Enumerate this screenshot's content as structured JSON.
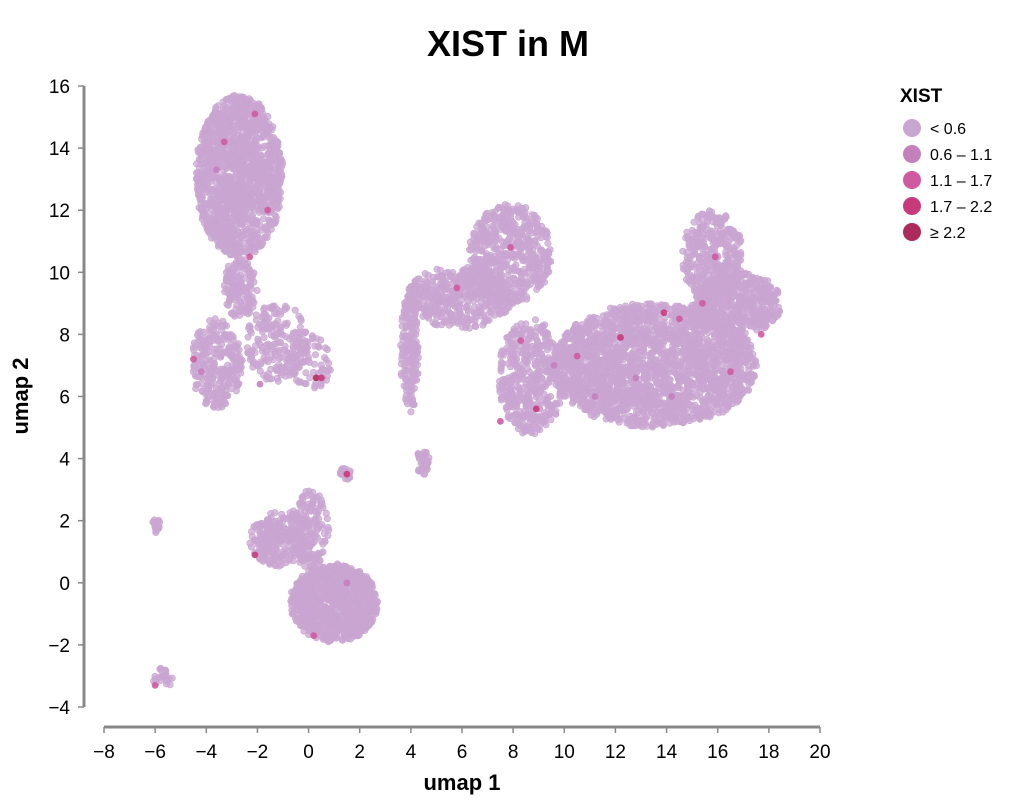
{
  "chart_data": {
    "type": "scatter",
    "title": "XIST in M",
    "xlabel": "umap 1",
    "ylabel": "umap 2",
    "xlim": [
      -8,
      20
    ],
    "ylim": [
      -4,
      16
    ],
    "xticks": [
      -8,
      -6,
      -4,
      -2,
      0,
      2,
      4,
      6,
      8,
      10,
      12,
      14,
      16,
      18,
      20
    ],
    "yticks": [
      -4,
      -2,
      0,
      2,
      4,
      6,
      8,
      10,
      12,
      14,
      16
    ],
    "xtick_labels": [
      "−8",
      "−6",
      "−4",
      "−2",
      "0",
      "2",
      "4",
      "6",
      "8",
      "10",
      "12",
      "14",
      "16",
      "18",
      "20"
    ],
    "ytick_labels": [
      "−4",
      "−2",
      "0",
      "2",
      "4",
      "6",
      "8",
      "10",
      "12",
      "14",
      "16"
    ],
    "grid": false,
    "legend": {
      "title": "XIST",
      "placement": "right",
      "items": [
        {
          "label": "< 0.6",
          "color": "#c9a5d1"
        },
        {
          "label": "0.6 – 1.1",
          "color": "#c480bc"
        },
        {
          "label": "1.1 – 1.7",
          "color": "#d05aa2"
        },
        {
          "label": "1.7 – 2.2",
          "color": "#c93a7c"
        },
        {
          "label": "≥ 2.2",
          "color": "#ad2a5c"
        }
      ]
    },
    "clusters": [
      {
        "name": "upper-left-head",
        "x": [
          -4.4,
          -1.0
        ],
        "y": [
          10.5,
          15.7
        ],
        "density": 1400
      },
      {
        "name": "upper-left-neck",
        "x": [
          -3.3,
          -2.0
        ],
        "y": [
          8.5,
          10.5
        ],
        "density": 150
      },
      {
        "name": "left-arm",
        "x": [
          -4.6,
          -2.6
        ],
        "y": [
          5.6,
          8.5
        ],
        "density": 260
      },
      {
        "name": "right-arm",
        "x": [
          -2.5,
          0.0
        ],
        "y": [
          6.5,
          9.0
        ],
        "density": 200
      },
      {
        "name": "small-center-left",
        "x": [
          -0.7,
          0.9
        ],
        "y": [
          6.2,
          8.0
        ],
        "density": 70
      },
      {
        "name": "narrow-spike",
        "x": [
          3.6,
          4.3
        ],
        "y": [
          5.5,
          9.5
        ],
        "density": 160
      },
      {
        "name": "center-bridge",
        "x": [
          3.8,
          8.0
        ],
        "y": [
          8.2,
          10.2
        ],
        "density": 450
      },
      {
        "name": "center-top-hump",
        "x": [
          6.3,
          9.5
        ],
        "y": [
          9.0,
          12.2
        ],
        "density": 500
      },
      {
        "name": "center-lower-arc",
        "x": [
          7.4,
          10.0
        ],
        "y": [
          4.8,
          8.5
        ],
        "density": 450
      },
      {
        "name": "large-right-body",
        "x": [
          9.5,
          17.5
        ],
        "y": [
          5.0,
          9.0
        ],
        "density": 2200
      },
      {
        "name": "right-top-lobe",
        "x": [
          14.6,
          17.0
        ],
        "y": [
          9.0,
          12.0
        ],
        "density": 350
      },
      {
        "name": "right-tail",
        "x": [
          15.0,
          18.5
        ],
        "y": [
          8.0,
          10.0
        ],
        "density": 500
      },
      {
        "name": "lower-left-a",
        "x": [
          -2.3,
          0.2
        ],
        "y": [
          0.5,
          2.3
        ],
        "density": 260
      },
      {
        "name": "lower-left-b",
        "x": [
          -0.7,
          0.8
        ],
        "y": [
          0.5,
          3.0
        ],
        "density": 150
      },
      {
        "name": "lower-main",
        "x": [
          -0.7,
          2.7
        ],
        "y": [
          -1.9,
          0.6
        ],
        "density": 900
      },
      {
        "name": "small-island-a",
        "x": [
          4.2,
          4.7
        ],
        "y": [
          3.5,
          4.3
        ],
        "density": 40
      },
      {
        "name": "small-island-b",
        "x": [
          1.2,
          1.7
        ],
        "y": [
          3.3,
          3.7
        ],
        "density": 20
      },
      {
        "name": "small-island-c",
        "x": [
          -6.1,
          -5.8
        ],
        "y": [
          1.6,
          2.1
        ],
        "density": 20
      },
      {
        "name": "small-island-d",
        "x": [
          -6.1,
          -5.3
        ],
        "y": [
          -3.4,
          -2.7
        ],
        "density": 25
      }
    ],
    "highlighted_points": [
      {
        "x": -2.1,
        "y": 15.1,
        "level": 2
      },
      {
        "x": -3.3,
        "y": 14.2,
        "level": 2
      },
      {
        "x": -1.6,
        "y": 12.0,
        "level": 2
      },
      {
        "x": -2.3,
        "y": 10.5,
        "level": 2
      },
      {
        "x": -3.6,
        "y": 13.3,
        "level": 1
      },
      {
        "x": -4.5,
        "y": 7.2,
        "level": 2
      },
      {
        "x": -4.2,
        "y": 6.8,
        "level": 1
      },
      {
        "x": 0.3,
        "y": 6.6,
        "level": 4
      },
      {
        "x": 0.5,
        "y": 6.6,
        "level": 3
      },
      {
        "x": 1.5,
        "y": 3.5,
        "level": 3
      },
      {
        "x": -2.1,
        "y": 0.9,
        "level": 3
      },
      {
        "x": 0.2,
        "y": -1.7,
        "level": 2
      },
      {
        "x": 1.5,
        "y": 0.0,
        "level": 1
      },
      {
        "x": 5.8,
        "y": 9.5,
        "level": 2
      },
      {
        "x": 7.9,
        "y": 10.8,
        "level": 2
      },
      {
        "x": 8.3,
        "y": 7.8,
        "level": 2
      },
      {
        "x": 8.9,
        "y": 5.6,
        "level": 3
      },
      {
        "x": 7.5,
        "y": 5.2,
        "level": 2
      },
      {
        "x": 10.5,
        "y": 7.3,
        "level": 2
      },
      {
        "x": 12.2,
        "y": 7.9,
        "level": 3
      },
      {
        "x": 12.8,
        "y": 6.6,
        "level": 1
      },
      {
        "x": 13.9,
        "y": 8.7,
        "level": 3
      },
      {
        "x": 14.5,
        "y": 8.5,
        "level": 2
      },
      {
        "x": 14.2,
        "y": 6.0,
        "level": 1
      },
      {
        "x": 15.4,
        "y": 9.0,
        "level": 2
      },
      {
        "x": 15.9,
        "y": 10.5,
        "level": 2
      },
      {
        "x": 16.5,
        "y": 6.8,
        "level": 2
      },
      {
        "x": 17.7,
        "y": 8.0,
        "level": 2
      },
      {
        "x": 11.2,
        "y": 6.0,
        "level": 1
      },
      {
        "x": 9.6,
        "y": 7.0,
        "level": 1
      },
      {
        "x": -1.9,
        "y": 6.4,
        "level": 1
      },
      {
        "x": -6.0,
        "y": -3.3,
        "level": 2
      }
    ]
  }
}
